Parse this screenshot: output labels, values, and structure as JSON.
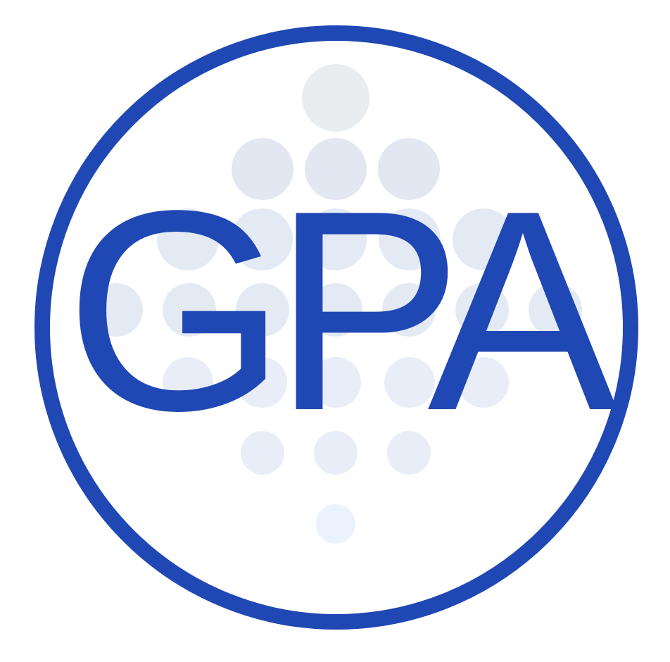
{
  "logo": {
    "text": "GPA",
    "colors": {
      "ring": "#2048b4",
      "text": "#2048b4",
      "background": "#ffffff",
      "dot_top": "#eaedf0",
      "dot_upper": "#e2e7f1",
      "dot_middle": "#e4eaf4",
      "dot_lower": "#e8edf7",
      "dot_bottom": "#ecf2fd"
    },
    "dot_pattern_rows": [
      1,
      3,
      5,
      7,
      5,
      3,
      1
    ],
    "dot_fill_legend": [
      "dot_top",
      "dot_upper",
      "dot_middle",
      "dot_middle",
      "dot_lower",
      "dot_lower",
      "dot_bottom"
    ]
  }
}
